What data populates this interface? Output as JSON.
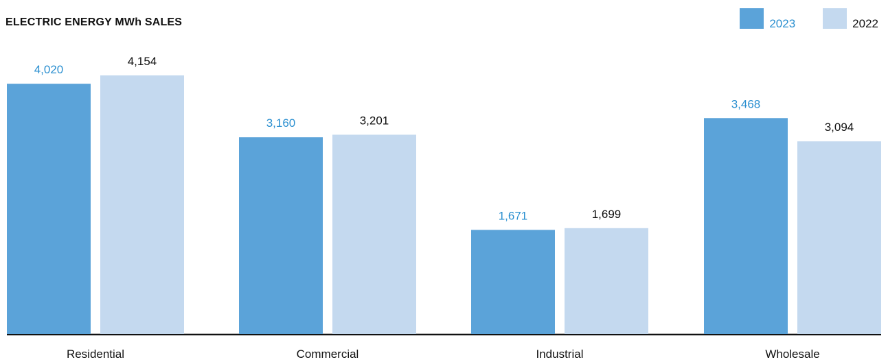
{
  "chart_data": {
    "type": "bar",
    "title": "ELECTRIC ENERGY MWh SALES",
    "categories": [
      "Residential",
      "Commercial",
      "Industrial",
      "Wholesale"
    ],
    "series": [
      {
        "name": "2023",
        "values": [
          4020,
          3160,
          1671,
          3468
        ],
        "value_labels": [
          "4,020",
          "3,160",
          "1,671",
          "3,468"
        ],
        "color": "#5ba3d9",
        "label_color": "#2a8fd0"
      },
      {
        "name": "2022",
        "values": [
          4154,
          3201,
          1699,
          3094
        ],
        "value_labels": [
          "4,154",
          "3,201",
          "1,699",
          "3,094"
        ],
        "color": "#c4d9ef",
        "label_color": "#111111"
      }
    ],
    "ylim": [
      0,
      4154
    ],
    "grid": false,
    "legend_position": "top-right"
  }
}
